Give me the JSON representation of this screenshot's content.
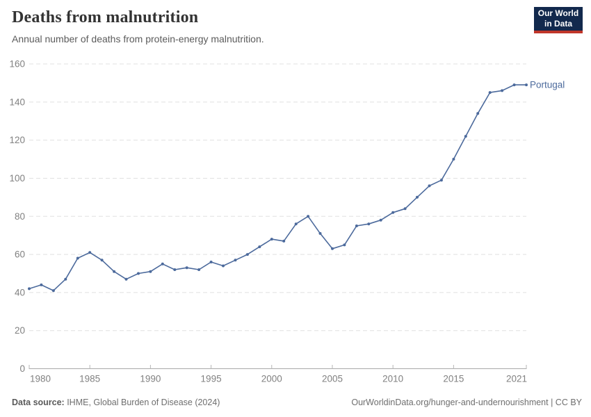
{
  "header": {
    "title": "Deaths from malnutrition",
    "subtitle": "Annual number of deaths from protein-energy malnutrition."
  },
  "logo": {
    "line1": "Our World",
    "line2": "in Data",
    "bg_color": "#12294d",
    "accent_color": "#c0362a"
  },
  "chart_data": {
    "type": "line",
    "title": "Deaths from malnutrition",
    "subtitle": "Annual number of deaths from protein-energy malnutrition.",
    "grid": "horizontal dashed",
    "legend_position": "end-of-line label",
    "xlim": [
      1980,
      2021
    ],
    "ylim": [
      0,
      160
    ],
    "x_tick_labels": [
      1980,
      1985,
      1990,
      1995,
      2000,
      2005,
      2010,
      2015,
      2021
    ],
    "y_tick_labels": [
      0,
      20,
      40,
      60,
      80,
      100,
      120,
      140,
      160
    ],
    "line_color": "#4C6A9C",
    "series": [
      {
        "name": "Portugal",
        "color": "#4C6A9C",
        "x": [
          1980,
          1981,
          1982,
          1983,
          1984,
          1985,
          1986,
          1987,
          1988,
          1989,
          1990,
          1991,
          1992,
          1993,
          1994,
          1995,
          1996,
          1997,
          1998,
          1999,
          2000,
          2001,
          2002,
          2003,
          2004,
          2005,
          2006,
          2007,
          2008,
          2009,
          2010,
          2011,
          2012,
          2013,
          2014,
          2015,
          2016,
          2017,
          2018,
          2019,
          2020,
          2021
        ],
        "values": [
          42,
          44,
          41,
          47,
          58,
          61,
          57,
          51,
          47,
          50,
          51,
          55,
          52,
          53,
          52,
          56,
          54,
          57,
          60,
          64,
          68,
          67,
          76,
          80,
          71,
          63,
          65,
          75,
          76,
          78,
          82,
          84,
          90,
          96,
          99,
          110,
          122,
          134,
          145,
          146,
          149,
          149
        ]
      }
    ]
  },
  "footer": {
    "source_label": "Data source:",
    "source_value": " IHME, Global Burden of Disease (2024)",
    "credit": "OurWorldinData.org/hunger-and-undernourishment | CC BY"
  }
}
